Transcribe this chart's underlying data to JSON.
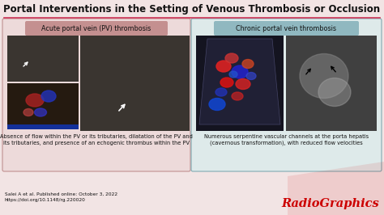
{
  "title": "Portal Interventions in the Setting of Venous Thrombosis or Occlusion",
  "title_fontsize": 8.5,
  "title_color": "#111111",
  "background_color": "#f2e4e4",
  "divider_color": "#cc3355",
  "left_panel_title": "Acute portal vein (PV) thrombosis",
  "left_panel_title_bg": "#c49090",
  "left_panel_title_color": "#111111",
  "left_panel_bg": "#eddada",
  "left_panel_border": "#c09090",
  "left_caption": "Absence of flow within the PV or its tributaries, dilatation of the PV and\nits tributaries, and presence of an echogenic thrombus within the PV",
  "right_panel_title": "Chronic portal vein thrombosis",
  "right_panel_title_bg": "#90b8c0",
  "right_panel_title_color": "#111111",
  "right_panel_bg": "#deeaea",
  "right_panel_border": "#80aab2",
  "right_caption": "Numerous serpentine vascular channels at the porta hepatis\n(cavernous transformation), with reduced flow velocities",
  "citation_text": "Salei A et al. Published online: October 3, 2022\nhttps://doi.org/10.1148/rg.220020",
  "citation_color": "#111111",
  "citation_fontsize": 4.2,
  "radiographics_text": "RadioGraphics",
  "radiographics_color": "#cc0000",
  "radiographics_fontsize": 10.5,
  "caption_fontsize": 4.8,
  "caption_color": "#111111",
  "panel_title_fontsize": 5.8
}
